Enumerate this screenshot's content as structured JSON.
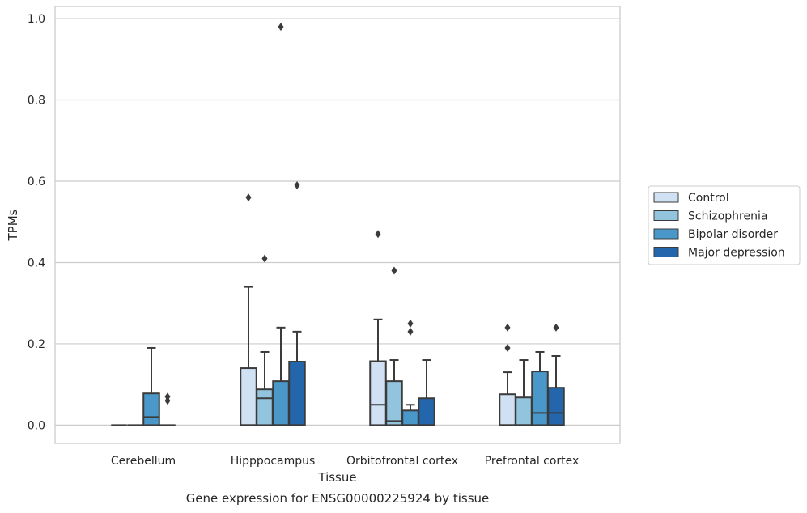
{
  "caption": "Gene expression for ENSG00000225924 by tissue",
  "chart_data": {
    "type": "box",
    "xlabel": "Tissue",
    "ylabel": "TPMs",
    "ylim": [
      -0.045,
      1.03
    ],
    "yticks": [
      0.0,
      0.2,
      0.4,
      0.6,
      0.8,
      1.0
    ],
    "ytick_labels": [
      "0.0",
      "0.2",
      "0.4",
      "0.6",
      "0.8",
      "1.0"
    ],
    "grid": "horizontal",
    "legend_position": "right",
    "categories": [
      "Cerebellum",
      "Hipppocampus",
      "Orbitofrontal cortex",
      "Prefrontal cortex"
    ],
    "series": [
      {
        "name": "Control",
        "color": "#cfe1f2",
        "boxes": [
          {
            "min": 0.0,
            "q1": 0.0,
            "median": 0.0,
            "q3": 0.0,
            "max": 0.0,
            "outliers": []
          },
          {
            "min": 0.0,
            "q1": 0.0,
            "median": 0.0,
            "q3": 0.14,
            "max": 0.34,
            "outliers": [
              0.56
            ]
          },
          {
            "min": 0.0,
            "q1": 0.0,
            "median": 0.05,
            "q3": 0.157,
            "max": 0.26,
            "outliers": [
              0.47
            ]
          },
          {
            "min": 0.0,
            "q1": 0.0,
            "median": 0.0,
            "q3": 0.076,
            "max": 0.13,
            "outliers": [
              0.19,
              0.24
            ]
          }
        ]
      },
      {
        "name": "Schizophrenia",
        "color": "#93c4de",
        "boxes": [
          {
            "min": 0.0,
            "q1": 0.0,
            "median": 0.0,
            "q3": 0.0,
            "max": 0.0,
            "outliers": []
          },
          {
            "min": 0.0,
            "q1": 0.0,
            "median": 0.066,
            "q3": 0.088,
            "max": 0.18,
            "outliers": [
              0.41
            ]
          },
          {
            "min": 0.0,
            "q1": 0.0,
            "median": 0.01,
            "q3": 0.108,
            "max": 0.16,
            "outliers": [
              0.38
            ]
          },
          {
            "min": 0.0,
            "q1": 0.0,
            "median": 0.0,
            "q3": 0.068,
            "max": 0.16,
            "outliers": []
          }
        ]
      },
      {
        "name": "Bipolar disorder",
        "color": "#4a98c9",
        "boxes": [
          {
            "min": 0.0,
            "q1": 0.0,
            "median": 0.02,
            "q3": 0.078,
            "max": 0.19,
            "outliers": []
          },
          {
            "min": 0.0,
            "q1": 0.0,
            "median": 0.0,
            "q3": 0.108,
            "max": 0.24,
            "outliers": [
              0.98
            ]
          },
          {
            "min": 0.0,
            "q1": 0.0,
            "median": 0.0,
            "q3": 0.036,
            "max": 0.05,
            "outliers": [
              0.23,
              0.25
            ]
          },
          {
            "min": 0.0,
            "q1": 0.0,
            "median": 0.03,
            "q3": 0.132,
            "max": 0.18,
            "outliers": []
          }
        ]
      },
      {
        "name": "Major depression",
        "color": "#2466ac",
        "boxes": [
          {
            "min": 0.0,
            "q1": 0.0,
            "median": 0.0,
            "q3": 0.0,
            "max": 0.0,
            "outliers": [
              0.06,
              0.07
            ]
          },
          {
            "min": 0.0,
            "q1": 0.0,
            "median": 0.0,
            "q3": 0.156,
            "max": 0.23,
            "outliers": [
              0.59
            ]
          },
          {
            "min": 0.0,
            "q1": 0.0,
            "median": 0.0,
            "q3": 0.066,
            "max": 0.16,
            "outliers": []
          },
          {
            "min": 0.0,
            "q1": 0.0,
            "median": 0.03,
            "q3": 0.092,
            "max": 0.17,
            "outliers": [
              0.24
            ]
          }
        ]
      }
    ]
  }
}
